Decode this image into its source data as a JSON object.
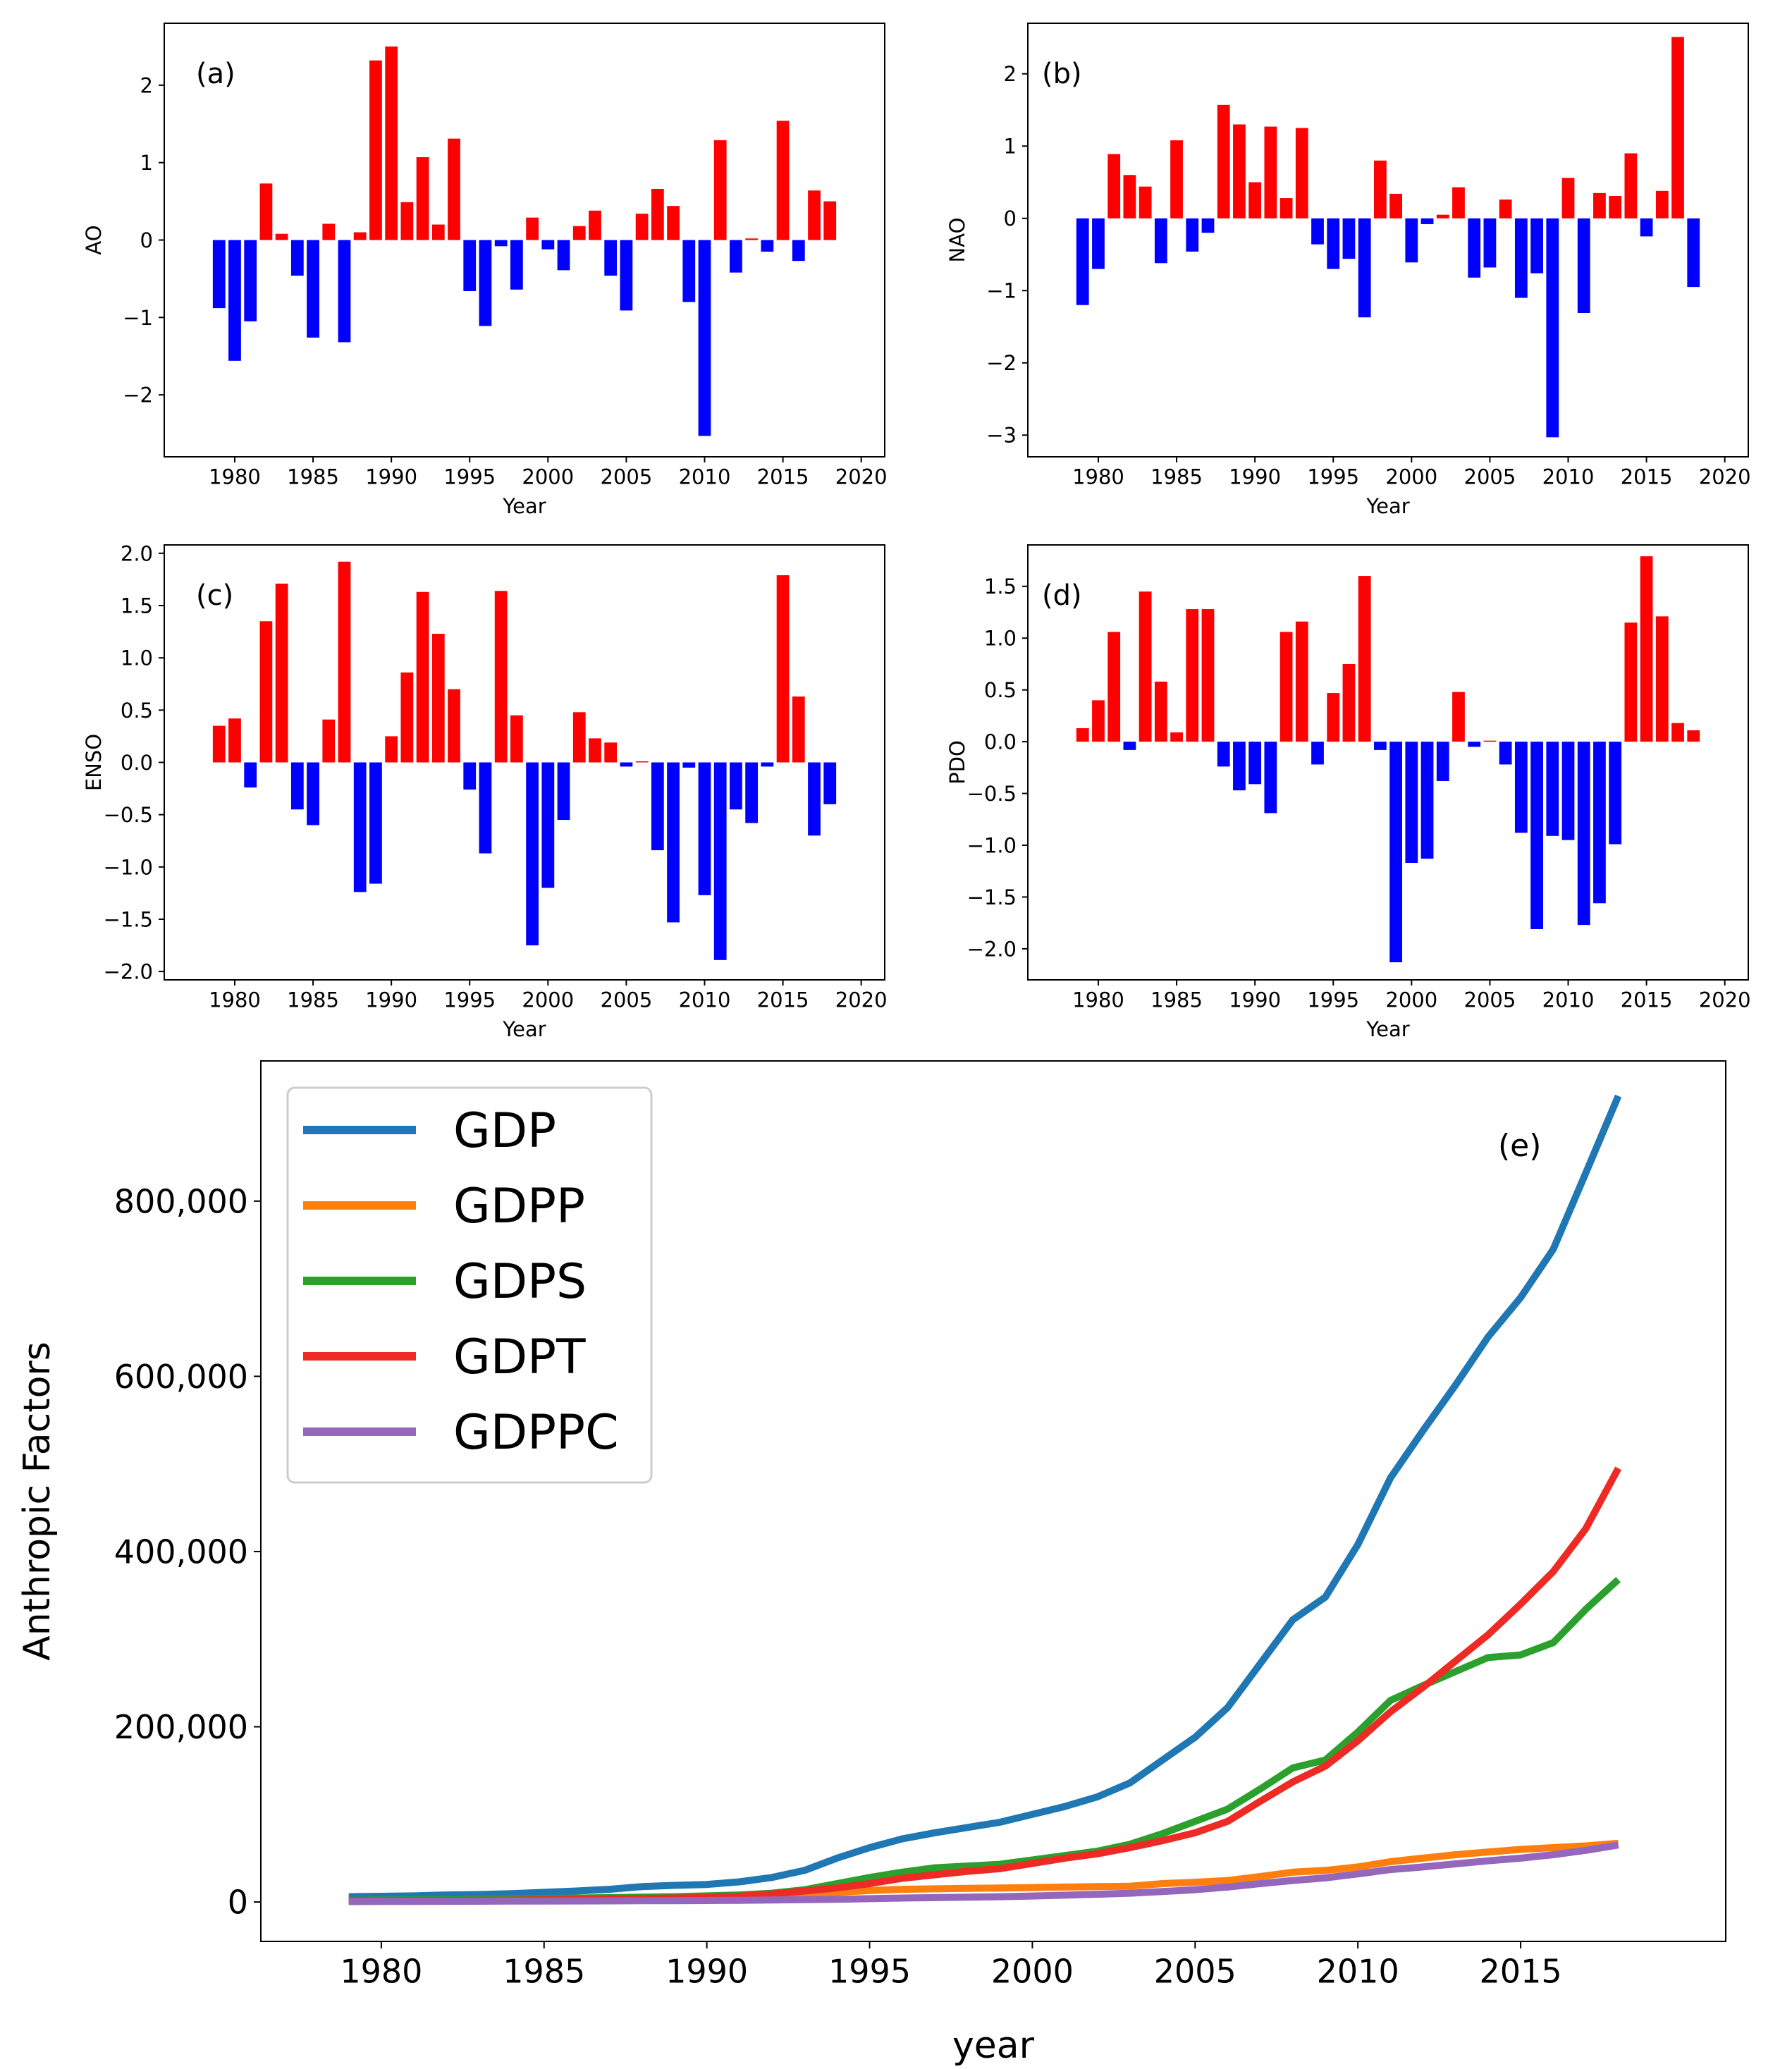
{
  "chart_data": [
    {
      "type": "bar",
      "panel_label": "(a)",
      "xlabel": "Year",
      "ylabel": "AO",
      "x": [
        1979,
        1980,
        1981,
        1982,
        1983,
        1984,
        1985,
        1986,
        1987,
        1988,
        1989,
        1990,
        1991,
        1992,
        1993,
        1994,
        1995,
        1996,
        1997,
        1998,
        1999,
        2000,
        2001,
        2002,
        2003,
        2004,
        2005,
        2006,
        2007,
        2008,
        2009,
        2010,
        2011,
        2012,
        2013,
        2014,
        2015,
        2016,
        2017,
        2018
      ],
      "values": [
        -0.88,
        -1.56,
        -1.05,
        0.73,
        0.08,
        -0.46,
        -1.26,
        0.21,
        -1.32,
        0.1,
        2.32,
        2.5,
        0.49,
        1.07,
        0.2,
        1.31,
        -0.66,
        -1.11,
        -0.08,
        -0.64,
        0.29,
        -0.12,
        -0.39,
        0.18,
        0.38,
        -0.46,
        -0.91,
        0.34,
        0.66,
        0.44,
        -0.8,
        -2.53,
        1.29,
        -0.42,
        0.02,
        -0.15,
        1.54,
        -0.27,
        0.64,
        0.5
      ],
      "xlim": [
        1975.5,
        2021.5
      ],
      "ylim": [
        -2.8,
        2.8
      ],
      "xticks": [
        1980,
        1985,
        1990,
        1995,
        2000,
        2005,
        2010,
        2015,
        2020
      ],
      "xtick_labels": [
        "1980",
        "1985",
        "1990",
        "1995",
        "2000",
        "2005",
        "2010",
        "2015",
        "2020"
      ],
      "yticks": [
        -2,
        -1,
        0,
        1,
        2
      ],
      "ytick_labels": [
        "−2",
        "−1",
        "0",
        "1",
        "2"
      ],
      "colors": {
        "positive": "#ff0000",
        "negative": "#0000ff"
      }
    },
    {
      "type": "bar",
      "panel_label": "(b)",
      "xlabel": "Year",
      "ylabel": "NAO",
      "x": [
        1979,
        1980,
        1981,
        1982,
        1983,
        1984,
        1985,
        1986,
        1987,
        1988,
        1989,
        1990,
        1991,
        1992,
        1993,
        1994,
        1995,
        1996,
        1997,
        1998,
        1999,
        2000,
        2001,
        2002,
        2003,
        2004,
        2005,
        2006,
        2007,
        2008,
        2009,
        2010,
        2011,
        2012,
        2013,
        2014,
        2015,
        2016,
        2017,
        2018
      ],
      "values": [
        -1.2,
        -0.7,
        0.89,
        0.6,
        0.44,
        -0.62,
        1.08,
        -0.46,
        -0.2,
        1.57,
        1.3,
        0.5,
        1.27,
        0.28,
        1.25,
        -0.36,
        -0.7,
        -0.56,
        -1.37,
        0.8,
        0.34,
        -0.61,
        -0.08,
        0.05,
        0.43,
        -0.82,
        -0.68,
        0.26,
        -1.1,
        -0.76,
        -3.03,
        0.56,
        -1.31,
        0.35,
        0.31,
        0.9,
        -0.25,
        0.38,
        2.51,
        -0.95
      ],
      "xlim": [
        1975.5,
        2021.5
      ],
      "ylim": [
        -3.3,
        2.7
      ],
      "xticks": [
        1980,
        1985,
        1990,
        1995,
        2000,
        2005,
        2010,
        2015,
        2020
      ],
      "xtick_labels": [
        "1980",
        "1985",
        "1990",
        "1995",
        "2000",
        "2005",
        "2010",
        "2015",
        "2020"
      ],
      "yticks": [
        -3,
        -2,
        -1,
        0,
        1,
        2
      ],
      "ytick_labels": [
        "−3",
        "−2",
        "−1",
        "0",
        "1",
        "2"
      ],
      "colors": {
        "positive": "#ff0000",
        "negative": "#0000ff"
      }
    },
    {
      "type": "bar",
      "panel_label": "(c)",
      "xlabel": "Year",
      "ylabel": "ENSO",
      "x": [
        1979,
        1980,
        1981,
        1982,
        1983,
        1984,
        1985,
        1986,
        1987,
        1988,
        1989,
        1990,
        1991,
        1992,
        1993,
        1994,
        1995,
        1996,
        1997,
        1998,
        1999,
        2000,
        2001,
        2002,
        2003,
        2004,
        2005,
        2006,
        2007,
        2008,
        2009,
        2010,
        2011,
        2012,
        2013,
        2014,
        2015,
        2016,
        2017,
        2018
      ],
      "values": [
        0.35,
        0.42,
        -0.24,
        1.35,
        1.71,
        -0.45,
        -0.6,
        0.41,
        1.92,
        -1.24,
        -1.16,
        0.25,
        0.86,
        1.63,
        1.23,
        0.7,
        -0.26,
        -0.87,
        1.64,
        0.45,
        -1.75,
        -1.2,
        -0.55,
        0.48,
        0.23,
        0.19,
        -0.04,
        0.01,
        -0.84,
        -1.53,
        -0.05,
        -1.27,
        -1.89,
        -0.45,
        -0.58,
        -0.04,
        1.79,
        0.63,
        -0.7,
        -0.4
      ],
      "xlim": [
        1975.5,
        2021.5
      ],
      "ylim": [
        -2.08,
        2.08
      ],
      "xticks": [
        1980,
        1985,
        1990,
        1995,
        2000,
        2005,
        2010,
        2015,
        2020
      ],
      "xtick_labels": [
        "1980",
        "1985",
        "1990",
        "1995",
        "2000",
        "2005",
        "2010",
        "2015",
        "2020"
      ],
      "yticks": [
        -2.0,
        -1.5,
        -1.0,
        -0.5,
        0.0,
        0.5,
        1.0,
        1.5,
        2.0
      ],
      "ytick_labels": [
        "−2.0",
        "−1.5",
        "−1.0",
        "−0.5",
        "0.0",
        "0.5",
        "1.0",
        "1.5",
        "2.0"
      ],
      "colors": {
        "positive": "#ff0000",
        "negative": "#0000ff"
      }
    },
    {
      "type": "bar",
      "panel_label": "(d)",
      "xlabel": "Year",
      "ylabel": "PDO",
      "x": [
        1979,
        1980,
        1981,
        1982,
        1983,
        1984,
        1985,
        1986,
        1987,
        1988,
        1989,
        1990,
        1991,
        1992,
        1993,
        1994,
        1995,
        1996,
        1997,
        1998,
        1999,
        2000,
        2001,
        2002,
        2003,
        2004,
        2005,
        2006,
        2007,
        2008,
        2009,
        2010,
        2011,
        2012,
        2013,
        2014,
        2015,
        2016,
        2017,
        2018
      ],
      "values": [
        0.13,
        0.4,
        1.06,
        -0.08,
        1.45,
        0.58,
        0.09,
        1.28,
        1.28,
        -0.24,
        -0.47,
        -0.41,
        -0.69,
        1.06,
        1.16,
        -0.22,
        0.47,
        0.75,
        1.6,
        -0.08,
        -2.13,
        -1.17,
        -1.13,
        -0.38,
        0.48,
        -0.05,
        0.01,
        -0.22,
        -0.88,
        -1.81,
        -0.91,
        -0.95,
        -1.77,
        -1.56,
        -0.99,
        1.15,
        1.79,
        1.21,
        0.18,
        0.11
      ],
      "xlim": [
        1975.5,
        2021.5
      ],
      "ylim": [
        -2.3,
        1.9
      ],
      "xticks": [
        1980,
        1985,
        1990,
        1995,
        2000,
        2005,
        2010,
        2015,
        2020
      ],
      "xtick_labels": [
        "1980",
        "1985",
        "1990",
        "1995",
        "2000",
        "2005",
        "2010",
        "2015",
        "2020"
      ],
      "yticks": [
        -2.0,
        -1.5,
        -1.0,
        -0.5,
        0.0,
        0.5,
        1.0,
        1.5
      ],
      "ytick_labels": [
        "−2.0",
        "−1.5",
        "−1.0",
        "−0.5",
        "0.0",
        "0.5",
        "1.0",
        "1.5"
      ],
      "colors": {
        "positive": "#ff0000",
        "negative": "#0000ff"
      }
    },
    {
      "type": "line",
      "panel_label": "(e)",
      "xlabel": "year",
      "ylabel": "Anthropic Factors",
      "x": [
        1979,
        1980,
        1981,
        1982,
        1983,
        1984,
        1985,
        1986,
        1987,
        1988,
        1989,
        1990,
        1991,
        1992,
        1993,
        1994,
        1995,
        1996,
        1997,
        1998,
        1999,
        2000,
        2001,
        2002,
        2003,
        2004,
        2005,
        2006,
        2007,
        2008,
        2009,
        2010,
        2011,
        2012,
        2013,
        2014,
        2015,
        2016,
        2017,
        2018
      ],
      "xlim": [
        1976.3,
        2021.3
      ],
      "ylim": [
        -45000,
        960000
      ],
      "xticks": [
        1980,
        1985,
        1990,
        1995,
        2000,
        2005,
        2010,
        2015
      ],
      "xtick_labels": [
        "1980",
        "1985",
        "1990",
        "1995",
        "2000",
        "2005",
        "2010",
        "2015"
      ],
      "yticks": [
        0,
        200000,
        400000,
        600000,
        800000
      ],
      "ytick_labels": [
        "0",
        "200,000",
        "400,000",
        "600,000",
        "800,000"
      ],
      "legend_position": "upper-left",
      "series": [
        {
          "name": "GDP",
          "color": "#1f77b4",
          "values": [
            6000,
            6500,
            7000,
            8000,
            8500,
            9500,
            11000,
            12500,
            14500,
            17500,
            19000,
            20000,
            23000,
            28000,
            36000,
            50000,
            62000,
            72000,
            79000,
            85000,
            91000,
            100000,
            109000,
            120000,
            136000,
            162000,
            188000,
            222000,
            272000,
            322000,
            348000,
            408000,
            484000,
            538000,
            590000,
            645000,
            690000,
            745000,
            832000,
            920000
          ]
        },
        {
          "name": "GDPP",
          "color": "#ff7f0e",
          "values": [
            1500,
            1700,
            1800,
            2000,
            2200,
            2500,
            3000,
            3500,
            4000,
            4500,
            5000,
            5500,
            6000,
            7000,
            8500,
            11000,
            13000,
            14500,
            15000,
            15500,
            16000,
            16500,
            17000,
            17500,
            18000,
            21000,
            22500,
            24500,
            29000,
            34000,
            36000,
            40000,
            46000,
            50000,
            54000,
            57000,
            60000,
            62000,
            64000,
            67000
          ]
        },
        {
          "name": "GDPS",
          "color": "#2ca02c",
          "values": [
            2000,
            2200,
            2500,
            2800,
            3000,
            3500,
            4000,
            4500,
            5000,
            5500,
            6000,
            7000,
            8000,
            10000,
            14000,
            21000,
            28000,
            34000,
            39000,
            41000,
            43000,
            48000,
            53000,
            58000,
            66000,
            78000,
            92000,
            106000,
            129000,
            153000,
            162000,
            194000,
            230000,
            247000,
            263000,
            279000,
            282000,
            296000,
            334000,
            368000
          ]
        },
        {
          "name": "GDPT",
          "color": "#ee2a24",
          "values": [
            1000,
            1200,
            1400,
            1600,
            1800,
            2000,
            2500,
            3000,
            3500,
            4000,
            4500,
            5000,
            6500,
            9000,
            12500,
            16000,
            21000,
            27000,
            31000,
            35000,
            38000,
            44000,
            50000,
            55000,
            62000,
            70000,
            79000,
            92000,
            115000,
            137000,
            155000,
            184000,
            217000,
            245000,
            275000,
            305000,
            340000,
            377000,
            426000,
            495000
          ]
        },
        {
          "name": "GDPPC",
          "color": "#9467bd",
          "values": [
            500,
            600,
            700,
            800,
            900,
            1000,
            1100,
            1200,
            1300,
            1400,
            1500,
            1700,
            1900,
            2200,
            2600,
            3000,
            3800,
            4500,
            5000,
            5500,
            6000,
            6800,
            7800,
            8800,
            10000,
            12000,
            14000,
            17000,
            21000,
            24500,
            27500,
            32000,
            37000,
            40000,
            43500,
            47000,
            50000,
            54000,
            59000,
            65000
          ]
        }
      ]
    }
  ]
}
